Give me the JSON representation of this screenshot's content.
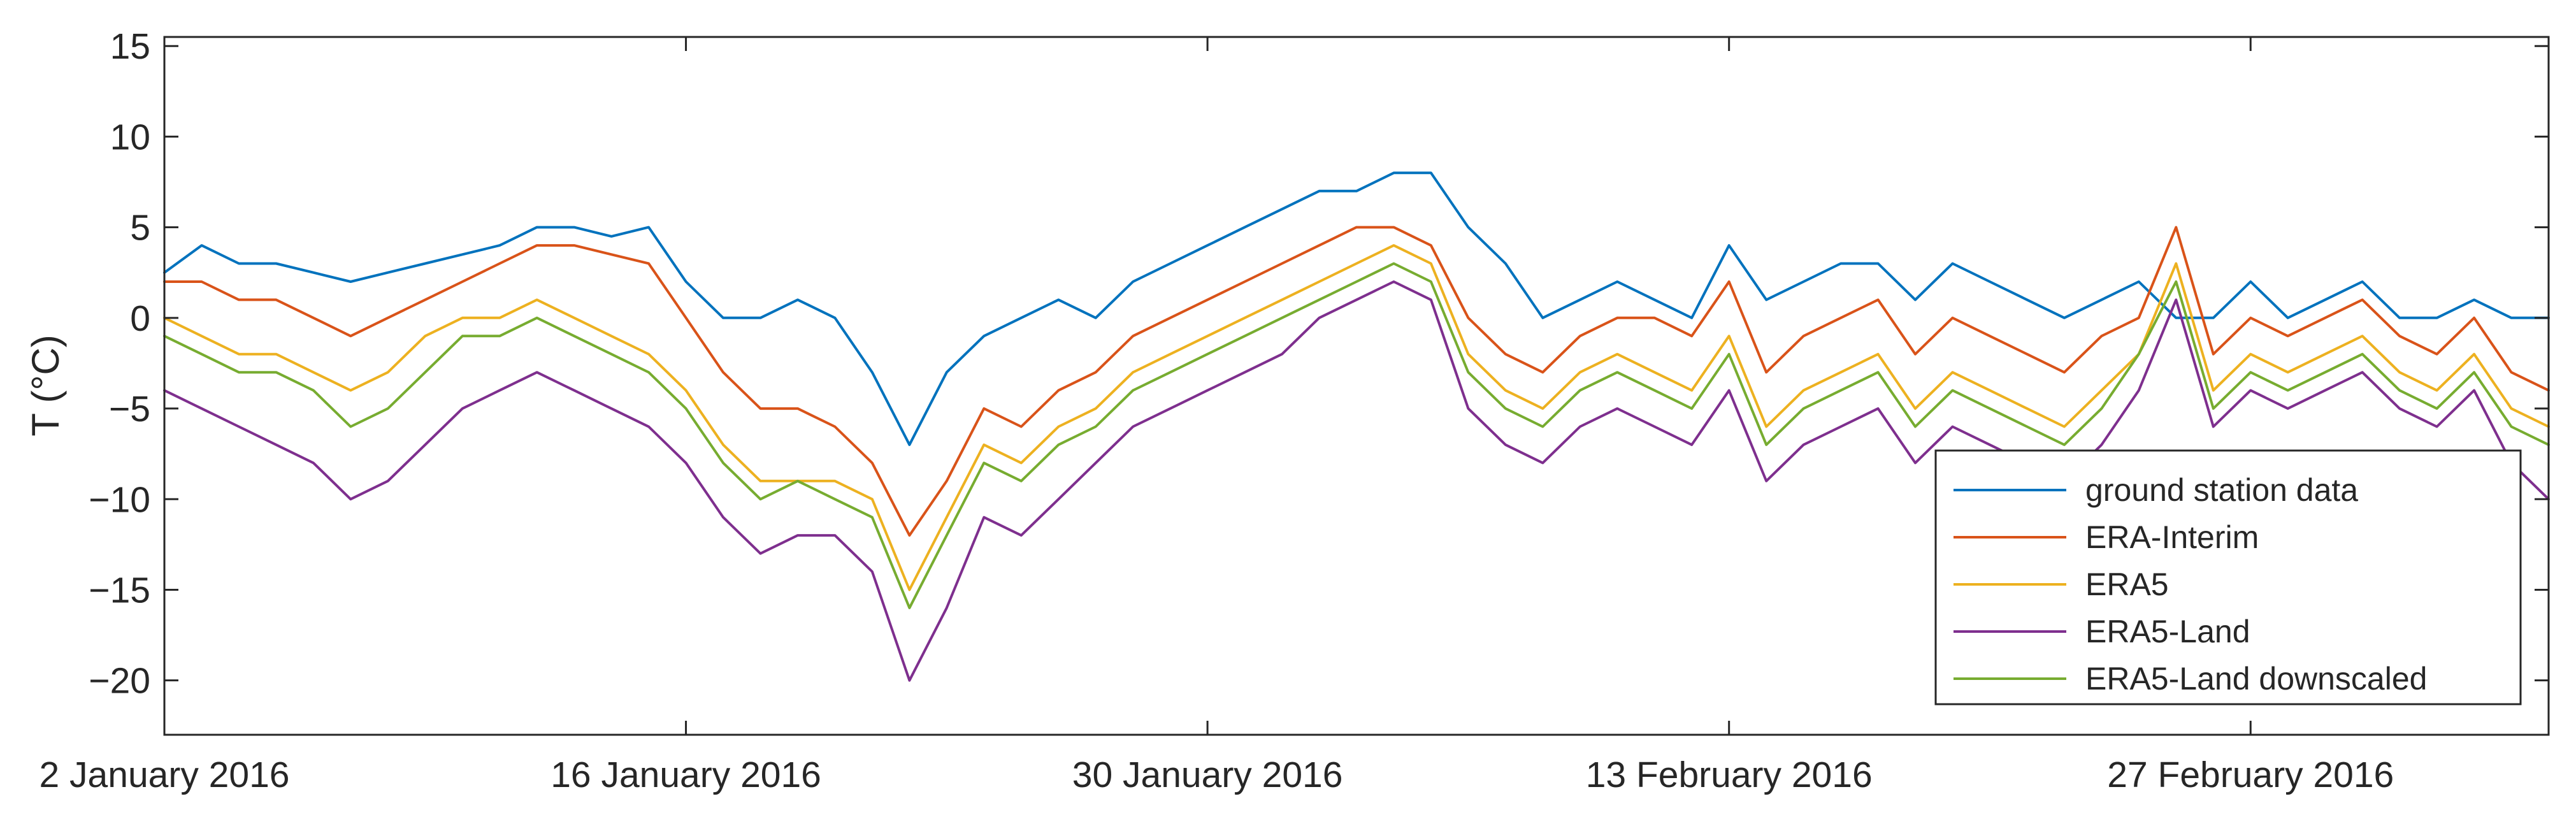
{
  "chart_data": {
    "type": "line",
    "title": "",
    "xlabel": "",
    "ylabel": "T (°C)",
    "ylim": [
      -23,
      15.5
    ],
    "xlim": [
      "2016-01-02",
      "2016-03-06"
    ],
    "grid": false,
    "legend_position": "bottom-right",
    "x_ticks": [
      {
        "date": "2016-01-02",
        "label": "2 January 2016"
      },
      {
        "date": "2016-01-16",
        "label": "16 January 2016"
      },
      {
        "date": "2016-01-30",
        "label": "30 January 2016"
      },
      {
        "date": "2016-02-13",
        "label": "13 February 2016"
      },
      {
        "date": "2016-02-27",
        "label": "27 February 2016"
      }
    ],
    "y_ticks": [
      15,
      10,
      5,
      0,
      -5,
      -10,
      -15,
      -20
    ],
    "x": [
      "2016-01-02",
      "2016-01-03",
      "2016-01-04",
      "2016-01-05",
      "2016-01-06",
      "2016-01-07",
      "2016-01-08",
      "2016-01-09",
      "2016-01-10",
      "2016-01-11",
      "2016-01-12",
      "2016-01-13",
      "2016-01-14",
      "2016-01-15",
      "2016-01-16",
      "2016-01-17",
      "2016-01-18",
      "2016-01-19",
      "2016-01-20",
      "2016-01-21",
      "2016-01-22",
      "2016-01-23",
      "2016-01-24",
      "2016-01-25",
      "2016-01-26",
      "2016-01-27",
      "2016-01-28",
      "2016-01-29",
      "2016-01-30",
      "2016-01-31",
      "2016-02-01",
      "2016-02-02",
      "2016-02-03",
      "2016-02-04",
      "2016-02-05",
      "2016-02-06",
      "2016-02-07",
      "2016-02-08",
      "2016-02-09",
      "2016-02-10",
      "2016-02-11",
      "2016-02-12",
      "2016-02-13",
      "2016-02-14",
      "2016-02-15",
      "2016-02-16",
      "2016-02-17",
      "2016-02-18",
      "2016-02-19",
      "2016-02-20",
      "2016-02-21",
      "2016-02-22",
      "2016-02-23",
      "2016-02-24",
      "2016-02-25",
      "2016-02-26",
      "2016-02-27",
      "2016-02-28",
      "2016-02-29",
      "2016-03-01",
      "2016-03-02",
      "2016-03-03",
      "2016-03-04",
      "2016-03-05",
      "2016-03-06"
    ],
    "series": [
      {
        "name": "ground station data",
        "color": "#0072BD",
        "values": [
          2.5,
          4,
          3,
          3,
          2.5,
          2,
          2.5,
          3,
          3.5,
          4,
          5,
          5,
          4.5,
          5,
          2,
          0,
          0,
          1,
          0,
          -3,
          -7,
          -3,
          -1,
          0,
          1,
          0,
          2,
          3,
          4,
          5,
          6,
          7,
          7,
          8,
          8,
          5,
          3,
          0,
          1,
          2,
          1,
          0,
          4,
          1,
          2,
          3,
          3,
          1,
          3,
          2,
          1,
          0,
          1,
          2,
          0,
          0,
          2,
          0,
          1,
          2,
          0,
          0,
          1,
          0,
          0
        ]
      },
      {
        "name": "ERA-Interim",
        "color": "#D95319",
        "values": [
          2,
          2,
          1,
          1,
          0,
          -1,
          0,
          1,
          2,
          3,
          4,
          4,
          3.5,
          3,
          0,
          -3,
          -5,
          -5,
          -6,
          -8,
          -12,
          -9,
          -5,
          -6,
          -4,
          -3,
          -1,
          0,
          1,
          2,
          3,
          4,
          5,
          5,
          4,
          0,
          -2,
          -3,
          -1,
          0,
          0,
          -1,
          2,
          -3,
          -1,
          0,
          1,
          -2,
          0,
          -1,
          -2,
          -3,
          -1,
          0,
          5,
          -2,
          0,
          -1,
          0,
          1,
          -1,
          -2,
          0,
          -3,
          -4
        ]
      },
      {
        "name": "ERA5",
        "color": "#EDB120",
        "values": [
          0,
          -1,
          -2,
          -2,
          -3,
          -4,
          -3,
          -1,
          0,
          0,
          1,
          0,
          -1,
          -2,
          -4,
          -7,
          -9,
          -9,
          -9,
          -10,
          -15,
          -11,
          -7,
          -8,
          -6,
          -5,
          -3,
          -2,
          -1,
          0,
          1,
          2,
          3,
          4,
          3,
          -2,
          -4,
          -5,
          -3,
          -2,
          -3,
          -4,
          -1,
          -6,
          -4,
          -3,
          -2,
          -5,
          -3,
          -4,
          -5,
          -6,
          -4,
          -2,
          3,
          -4,
          -2,
          -3,
          -2,
          -1,
          -3,
          -4,
          -2,
          -5,
          -6
        ]
      },
      {
        "name": "ERA5-Land",
        "color": "#7E2F8E",
        "values": [
          -4,
          -5,
          -6,
          -7,
          -8,
          -10,
          -9,
          -7,
          -5,
          -4,
          -3,
          -4,
          -5,
          -6,
          -8,
          -11,
          -13,
          -12,
          -12,
          -14,
          -20,
          -16,
          -11,
          -12,
          -10,
          -8,
          -6,
          -5,
          -4,
          -3,
          -2,
          0,
          1,
          2,
          1,
          -5,
          -7,
          -8,
          -6,
          -5,
          -6,
          -7,
          -4,
          -9,
          -7,
          -6,
          -5,
          -8,
          -6,
          -7,
          -8,
          -9,
          -7,
          -4,
          1,
          -6,
          -4,
          -5,
          -4,
          -3,
          -5,
          -6,
          -4,
          -8,
          -10
        ]
      },
      {
        "name": "ERA5-Land downscaled",
        "color": "#77AC30",
        "values": [
          -1,
          -2,
          -3,
          -3,
          -4,
          -6,
          -5,
          -3,
          -1,
          -1,
          0,
          -1,
          -2,
          -3,
          -5,
          -8,
          -10,
          -9,
          -10,
          -11,
          -16,
          -12,
          -8,
          -9,
          -7,
          -6,
          -4,
          -3,
          -2,
          -1,
          0,
          1,
          2,
          3,
          2,
          -3,
          -5,
          -6,
          -4,
          -3,
          -4,
          -5,
          -2,
          -7,
          -5,
          -4,
          -3,
          -6,
          -4,
          -5,
          -6,
          -7,
          -5,
          -2,
          2,
          -5,
          -3,
          -4,
          -3,
          -2,
          -4,
          -5,
          -3,
          -6,
          -7
        ]
      }
    ]
  }
}
